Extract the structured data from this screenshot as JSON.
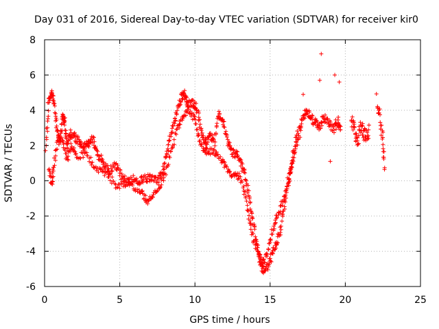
{
  "chart_data": {
    "type": "scatter",
    "title": "Day 031 of 2016, Sidereal Day-to-day VTEC variation (SDTVAR) for receiver kir0",
    "xlabel": "GPS time / hours",
    "ylabel": "SDTVAR / TECUs",
    "xlim": [
      0,
      25
    ],
    "ylim": [
      -6,
      8
    ],
    "x_ticks": [
      0,
      5,
      10,
      15,
      20,
      25
    ],
    "y_ticks": [
      -6,
      -4,
      -2,
      0,
      2,
      4,
      6,
      8
    ],
    "grid": true,
    "marker": "+",
    "color": "#ff0000",
    "series": [
      {
        "name": "SDTVAR",
        "trace": [
          [
            0.1,
            1.9
          ],
          [
            0.25,
            4.5
          ],
          [
            0.45,
            5.0
          ],
          [
            0.6,
            4.6
          ],
          [
            0.8,
            3.0
          ],
          [
            1.0,
            2.2
          ],
          [
            1.2,
            3.7
          ],
          [
            1.35,
            3.3
          ],
          [
            1.5,
            1.9
          ],
          [
            1.7,
            2.7
          ],
          [
            2.0,
            2.5
          ],
          [
            2.3,
            2.2
          ],
          [
            2.6,
            1.9
          ],
          [
            2.9,
            2.1
          ],
          [
            3.2,
            2.4
          ],
          [
            3.5,
            1.5
          ],
          [
            3.9,
            1.1
          ],
          [
            4.3,
            0.5
          ],
          [
            4.7,
            0.9
          ],
          [
            5.1,
            0.3
          ],
          [
            5.5,
            -0.1
          ],
          [
            5.9,
            0.1
          ],
          [
            6.3,
            0.0
          ],
          [
            6.7,
            0.1
          ],
          [
            7.1,
            0.2
          ],
          [
            7.5,
            0.0
          ],
          [
            7.9,
            0.6
          ],
          [
            8.2,
            1.8
          ],
          [
            8.5,
            2.9
          ],
          [
            8.8,
            3.9
          ],
          [
            9.1,
            4.8
          ],
          [
            9.3,
            5.0
          ],
          [
            9.5,
            4.3
          ],
          [
            9.8,
            4.4
          ],
          [
            10.1,
            4.2
          ],
          [
            10.4,
            2.9
          ],
          [
            10.7,
            2.1
          ],
          [
            11.0,
            2.6
          ],
          [
            11.3,
            2.2
          ],
          [
            11.6,
            3.9
          ],
          [
            11.9,
            3.3
          ],
          [
            12.2,
            2.1
          ],
          [
            12.5,
            1.6
          ],
          [
            12.8,
            1.5
          ],
          [
            13.1,
            0.9
          ],
          [
            13.4,
            0.1
          ],
          [
            13.7,
            -1.5
          ],
          [
            14.0,
            -3.0
          ],
          [
            14.3,
            -4.4
          ],
          [
            14.5,
            -5.1
          ],
          [
            14.8,
            -4.9
          ],
          [
            15.1,
            -4.3
          ],
          [
            15.4,
            -3.6
          ],
          [
            15.7,
            -2.8
          ],
          [
            16.0,
            -1.1
          ],
          [
            16.3,
            0.2
          ],
          [
            16.5,
            1.2
          ],
          [
            16.8,
            2.6
          ],
          [
            17.1,
            3.3
          ],
          [
            17.4,
            4.0
          ],
          [
            17.7,
            3.6
          ],
          [
            18.0,
            3.3
          ],
          [
            18.3,
            3.1
          ],
          [
            18.6,
            3.6
          ],
          [
            18.9,
            3.3
          ],
          [
            19.2,
            2.9
          ],
          [
            19.5,
            3.4
          ],
          [
            19.7,
            2.8
          ]
        ],
        "trace_b": [
          [
            0.3,
            0.8
          ],
          [
            0.5,
            -0.3
          ],
          [
            0.6,
            0.8
          ],
          [
            0.9,
            2.5
          ],
          [
            1.2,
            2.2
          ],
          [
            1.5,
            1.2
          ],
          [
            1.8,
            2.0
          ],
          [
            2.2,
            1.4
          ],
          [
            2.8,
            1.6
          ],
          [
            3.3,
            0.8
          ],
          [
            3.8,
            0.5
          ],
          [
            4.3,
            0.3
          ],
          [
            4.8,
            -0.3
          ],
          [
            5.3,
            -0.2
          ],
          [
            5.9,
            -0.3
          ],
          [
            6.5,
            -0.7
          ],
          [
            6.8,
            -1.2
          ],
          [
            7.2,
            -0.9
          ],
          [
            7.6,
            -0.4
          ],
          [
            8.0,
            0.4
          ],
          [
            8.4,
            1.6
          ],
          [
            8.8,
            2.9
          ],
          [
            9.2,
            3.7
          ],
          [
            9.6,
            3.9
          ],
          [
            10.0,
            3.5
          ],
          [
            10.3,
            2.3
          ],
          [
            10.6,
            1.7
          ],
          [
            10.9,
            1.7
          ],
          [
            11.3,
            1.6
          ],
          [
            11.7,
            1.2
          ],
          [
            12.1,
            0.6
          ],
          [
            12.5,
            0.2
          ],
          [
            12.9,
            0.3
          ],
          [
            13.3,
            -0.6
          ],
          [
            13.6,
            -2.1
          ],
          [
            13.9,
            -3.4
          ],
          [
            14.2,
            -4.0
          ],
          [
            14.5,
            -4.7
          ],
          [
            14.8,
            -4.2
          ],
          [
            15.1,
            -3.0
          ],
          [
            15.4,
            -2.2
          ],
          [
            15.7,
            -1.5
          ],
          [
            16.0,
            -0.8
          ],
          [
            16.3,
            0.5
          ],
          [
            16.6,
            1.7
          ],
          [
            17.0,
            2.6
          ]
        ],
        "gap_segments": [
          [
            [
              20.4,
              3.6
            ],
            [
              20.6,
              2.9
            ],
            [
              20.8,
              2.2
            ],
            [
              21.0,
              3.2
            ],
            [
              21.2,
              2.7
            ],
            [
              21.4,
              2.5
            ],
            [
              21.6,
              3.0
            ]
          ],
          [
            [
              22.1,
              4.6
            ],
            [
              22.3,
              3.6
            ],
            [
              22.5,
              2.3
            ],
            [
              22.6,
              0.6
            ]
          ]
        ],
        "outliers": [
          [
            18.4,
            7.2
          ],
          [
            19.3,
            6.0
          ],
          [
            18.3,
            5.7
          ],
          [
            19.6,
            5.6
          ],
          [
            17.2,
            4.9
          ],
          [
            19.0,
            1.1
          ]
        ]
      }
    ]
  }
}
